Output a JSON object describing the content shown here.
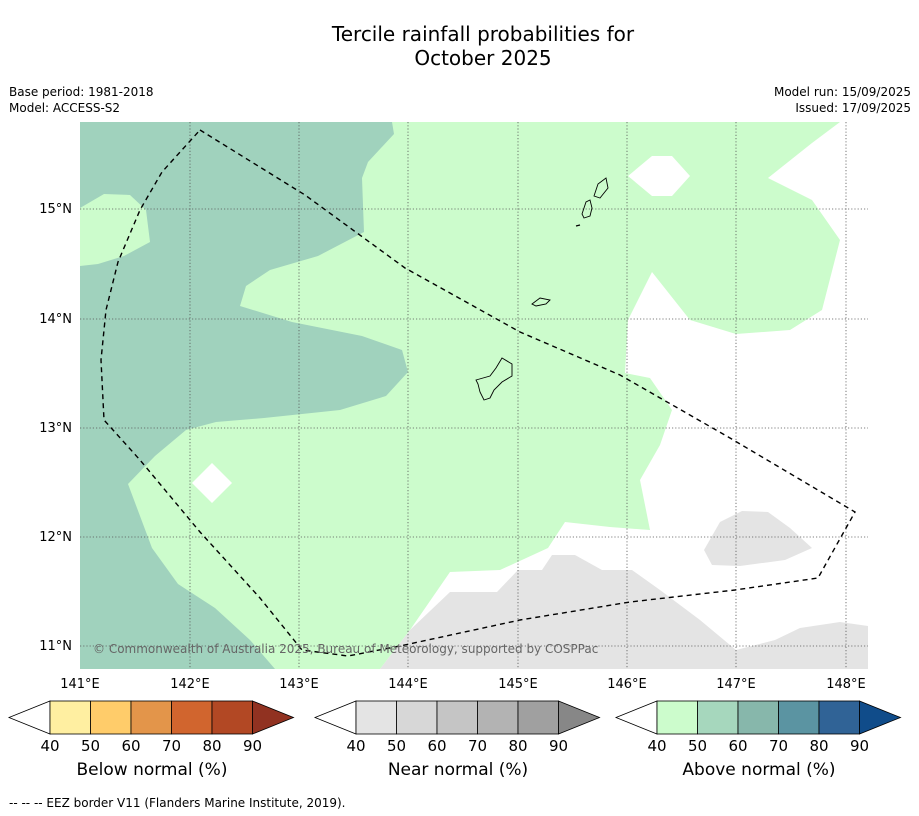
{
  "title_line1": "Tercile rainfall probabilities for",
  "title_line2": "October 2025",
  "meta": {
    "base_period": "Base period: 1981-2018",
    "model": "Model: ACCESS-S2",
    "model_run": "Model run: 15/09/2025",
    "issued": "Issued: 17/09/2025"
  },
  "map": {
    "lon_labels": [
      "141°E",
      "142°E",
      "143°E",
      "144°E",
      "145°E",
      "146°E",
      "147°E",
      "148°E"
    ],
    "lat_labels": [
      "15°N",
      "14°N",
      "13°N",
      "12°N",
      "11°N"
    ],
    "copyright": "© Commonwealth of Australia 2025, Bureau of Meteorology, supported by COSPPac",
    "colors": {
      "above_50": "#ccfccc",
      "above_60": "#a0d2bd",
      "near_50": "#e4e4e4",
      "border": "#000000"
    }
  },
  "colorbars": [
    {
      "title": "Below normal (%)",
      "ticks": [
        "40",
        "50",
        "60",
        "70",
        "80",
        "90"
      ],
      "colors": [
        "#ffffff",
        "#ffefa1",
        "#ffcc6a",
        "#e3954a",
        "#d1652e",
        "#b24824",
        "#913221"
      ]
    },
    {
      "title": "Near normal (%)",
      "ticks": [
        "40",
        "50",
        "60",
        "70",
        "80",
        "90"
      ],
      "colors": [
        "#ffffff",
        "#e4e4e4",
        "#d7d7d7",
        "#c5c5c5",
        "#b3b3b3",
        "#a0a0a0",
        "#878787"
      ]
    },
    {
      "title": "Above normal (%)",
      "ticks": [
        "40",
        "50",
        "60",
        "70",
        "80",
        "90"
      ],
      "colors": [
        "#ffffff",
        "#ccfccc",
        "#a6d7bd",
        "#87b7ab",
        "#5b94a2",
        "#306396",
        "#104c8a"
      ]
    }
  ],
  "footnote": "--  --  -- EEZ border V11 (Flanders Marine Institute, 2019)."
}
